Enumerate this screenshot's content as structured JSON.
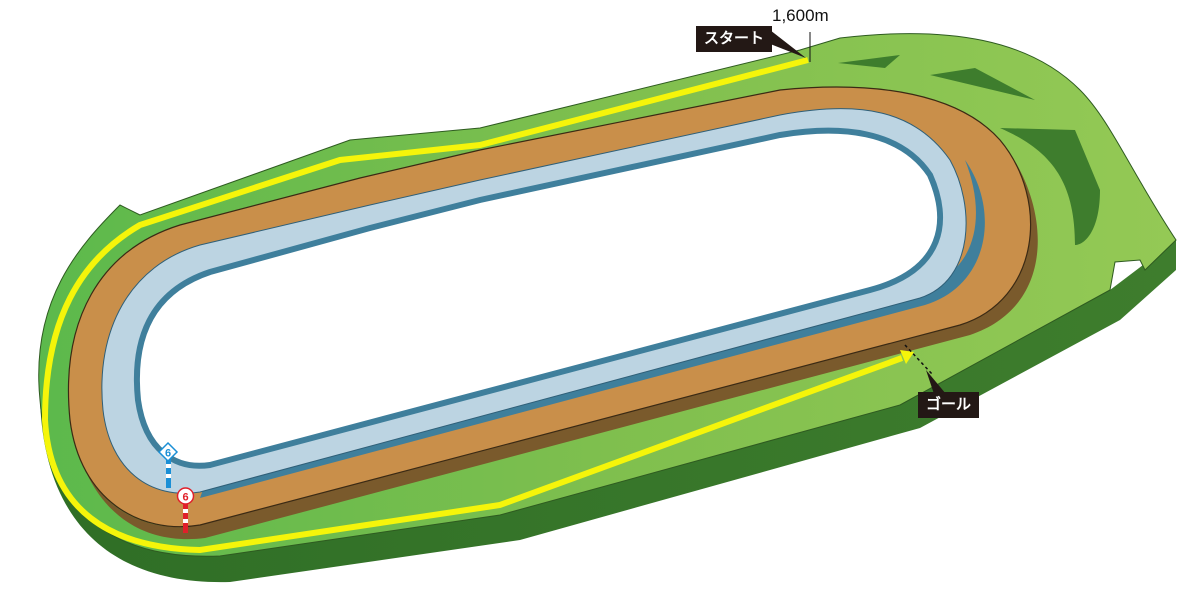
{
  "course": {
    "start_label": "スタート",
    "goal_label": "ゴール",
    "distance": "1,600m",
    "markers": [
      {
        "type": "inner",
        "number": "6",
        "color": "#1a8fd6"
      },
      {
        "type": "outer",
        "number": "6",
        "color": "#e0202a"
      }
    ]
  },
  "colors": {
    "turf": "#8fc653",
    "turf_side": "#3d7a2c",
    "dirt": "#c98f4a",
    "inner_course": "#bcd4e2",
    "inner_course_side": "#3f7f9c",
    "course_line": "#f5f50a",
    "label_bg": "#231815"
  }
}
